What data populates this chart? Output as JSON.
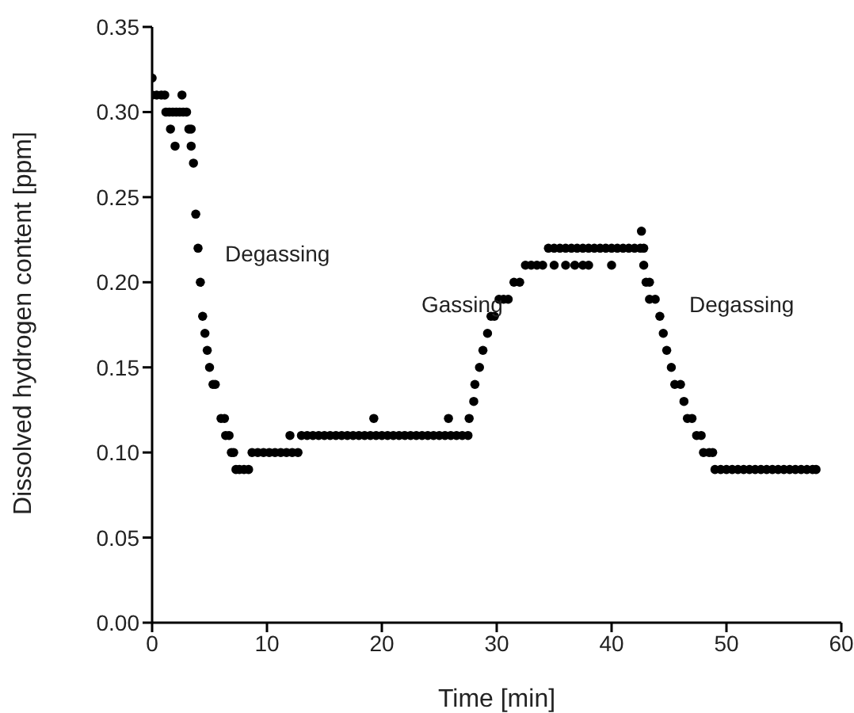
{
  "chart_data": {
    "type": "scatter",
    "xlabel": "Time [min]",
    "ylabel": "Dissolved hydrogen content [ppm]",
    "xlim": [
      0,
      60
    ],
    "xticks": [
      0,
      10,
      20,
      30,
      40,
      50,
      60
    ],
    "ylim": [
      0,
      0.35
    ],
    "yticks": [
      {
        "value": 0,
        "label": "0.00"
      },
      0.05,
      {
        "value": 0.1,
        "label": "0.10"
      },
      0.15,
      {
        "value": 0.2,
        "label": "0.20"
      },
      0.25,
      {
        "value": 0.3,
        "label": "0.30"
      },
      0.35
    ],
    "grid": false,
    "legend": false,
    "marker": "circle",
    "annotations": [
      "Degassing",
      "Gassing",
      "Degassing"
    ],
    "series": [
      {
        "color": "#000000",
        "x": [
          0,
          0,
          0.4,
          0.8,
          1.1,
          1.2,
          1.5,
          1.8,
          2.1,
          2.4,
          2.7,
          3.0,
          2.6,
          2.0,
          1.6,
          3.2,
          3.4,
          3.4,
          3.6,
          3.8,
          4.0,
          4.2,
          4.4,
          4.6,
          4.8,
          5.0,
          5.3,
          5.5,
          6.0,
          6.3,
          6.4,
          6.7,
          6.9,
          7.1,
          7.3,
          7.6,
          8.0,
          8.4,
          8.7,
          9.2,
          9.7,
          10.2,
          10.7,
          11.2,
          11.7,
          12.2,
          12.7,
          12.0,
          13.0,
          13.5,
          14.0,
          14.5,
          15.0,
          15.5,
          16.0,
          16.5,
          17.0,
          17.5,
          18.0,
          18.5,
          19.0,
          19.3,
          19.5,
          20.0,
          20.5,
          21.0,
          21.5,
          22.0,
          22.5,
          23.0,
          23.5,
          24.0,
          24.5,
          25.0,
          25.5,
          25.8,
          26.0,
          26.5,
          27.0,
          27.5,
          27.6,
          28.0,
          28.1,
          28.5,
          28.8,
          29.2,
          29.5,
          29.8,
          30.2,
          30.6,
          31.0,
          31.5,
          32.0,
          32.5,
          33.0,
          33.5,
          34.0,
          34.5,
          35.0,
          35.5,
          36.0,
          36.5,
          37.0,
          37.5,
          38.0,
          38.5,
          39.0,
          39.5,
          40.0,
          40.5,
          41.0,
          41.5,
          42.0,
          42.5,
          42.8,
          35.0,
          36.0,
          36.8,
          37.5,
          38.0,
          40.0,
          42.8,
          42.6,
          43.0,
          43.3,
          43.8,
          43.3,
          44.2,
          44.5,
          44.8,
          45.2,
          45.5,
          46.0,
          46.3,
          46.6,
          47.0,
          47.4,
          47.8,
          48.0,
          48.5,
          48.8,
          49.0,
          49.5,
          50.0,
          50.5,
          51.0,
          51.5,
          52.0,
          52.5,
          53.0,
          53.5,
          54.0,
          54.5,
          55.0,
          55.5,
          56.0,
          56.5,
          57.0,
          57.5,
          57.8
        ],
        "values": [
          0.32,
          0.31,
          0.31,
          0.31,
          0.31,
          0.3,
          0.3,
          0.3,
          0.3,
          0.3,
          0.3,
          0.3,
          0.31,
          0.28,
          0.29,
          0.29,
          0.29,
          0.28,
          0.27,
          0.24,
          0.22,
          0.2,
          0.18,
          0.17,
          0.16,
          0.15,
          0.14,
          0.14,
          0.12,
          0.12,
          0.11,
          0.11,
          0.1,
          0.1,
          0.09,
          0.09,
          0.09,
          0.09,
          0.1,
          0.1,
          0.1,
          0.1,
          0.1,
          0.1,
          0.1,
          0.1,
          0.1,
          0.11,
          0.11,
          0.11,
          0.11,
          0.11,
          0.11,
          0.11,
          0.11,
          0.11,
          0.11,
          0.11,
          0.11,
          0.11,
          0.11,
          0.12,
          0.11,
          0.11,
          0.11,
          0.11,
          0.11,
          0.11,
          0.11,
          0.11,
          0.11,
          0.11,
          0.11,
          0.11,
          0.11,
          0.12,
          0.11,
          0.11,
          0.11,
          0.11,
          0.12,
          0.13,
          0.14,
          0.15,
          0.16,
          0.17,
          0.18,
          0.18,
          0.19,
          0.19,
          0.19,
          0.2,
          0.2,
          0.21,
          0.21,
          0.21,
          0.21,
          0.22,
          0.22,
          0.22,
          0.22,
          0.22,
          0.22,
          0.22,
          0.22,
          0.22,
          0.22,
          0.22,
          0.22,
          0.22,
          0.22,
          0.22,
          0.22,
          0.22,
          0.22,
          0.21,
          0.21,
          0.21,
          0.21,
          0.21,
          0.21,
          0.21,
          0.23,
          0.2,
          0.19,
          0.19,
          0.2,
          0.18,
          0.17,
          0.16,
          0.15,
          0.14,
          0.14,
          0.13,
          0.12,
          0.12,
          0.11,
          0.11,
          0.1,
          0.1,
          0.1,
          0.09,
          0.09,
          0.09,
          0.09,
          0.09,
          0.09,
          0.09,
          0.09,
          0.09,
          0.09,
          0.09,
          0.09,
          0.09,
          0.09,
          0.09,
          0.09,
          0.09,
          0.09,
          0.09
        ]
      }
    ]
  }
}
